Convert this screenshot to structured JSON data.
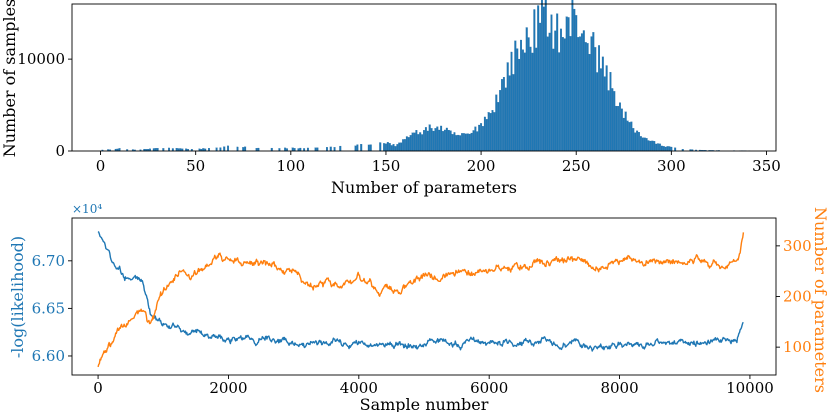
{
  "chart_data": [
    {
      "type": "bar",
      "title": "",
      "xlabel": "Number of parameters",
      "ylabel": "Number of samples",
      "xlim": [
        -15,
        355
      ],
      "ylim": [
        0,
        16000
      ],
      "xticks": [
        0,
        50,
        100,
        150,
        200,
        250,
        300,
        350
      ],
      "yticks": [
        0,
        10000
      ],
      "bar_color": "#1f77b4",
      "profile": [
        [
          0,
          100
        ],
        [
          10,
          250
        ],
        [
          20,
          120
        ],
        [
          30,
          320
        ],
        [
          40,
          280
        ],
        [
          50,
          200
        ],
        [
          60,
          330
        ],
        [
          70,
          550
        ],
        [
          80,
          380
        ],
        [
          90,
          300
        ],
        [
          100,
          320
        ],
        [
          110,
          280
        ],
        [
          120,
          420
        ],
        [
          130,
          560
        ],
        [
          140,
          700
        ],
        [
          150,
          900
        ],
        [
          155,
          600
        ],
        [
          160,
          1300
        ],
        [
          165,
          1900
        ],
        [
          170,
          2200
        ],
        [
          175,
          2600
        ],
        [
          180,
          2400
        ],
        [
          185,
          1800
        ],
        [
          190,
          1700
        ],
        [
          195,
          1900
        ],
        [
          200,
          3000
        ],
        [
          205,
          4200
        ],
        [
          210,
          6500
        ],
        [
          215,
          9300
        ],
        [
          220,
          11000
        ],
        [
          225,
          12500
        ],
        [
          230,
          13600
        ],
        [
          233,
          15300
        ],
        [
          236,
          14000
        ],
        [
          240,
          13100
        ],
        [
          244,
          12600
        ],
        [
          248,
          14500
        ],
        [
          252,
          13700
        ],
        [
          256,
          12400
        ],
        [
          260,
          10700
        ],
        [
          265,
          8900
        ],
        [
          270,
          6400
        ],
        [
          275,
          3900
        ],
        [
          280,
          2500
        ],
        [
          285,
          1600
        ],
        [
          290,
          1000
        ],
        [
          295,
          600
        ],
        [
          300,
          400
        ],
        [
          305,
          260
        ],
        [
          310,
          150
        ],
        [
          320,
          80
        ],
        [
          330,
          50
        ],
        [
          340,
          40
        ],
        [
          345,
          0
        ]
      ]
    },
    {
      "type": "line",
      "title": "",
      "xlabel": "Sample number",
      "xlim": [
        -400,
        10400
      ],
      "xticks": [
        0,
        2000,
        4000,
        6000,
        8000,
        10000
      ],
      "y_left": {
        "label": "-log(likelihood)",
        "multiplier": "×10⁴",
        "ylim": [
          6.58,
          6.745
        ],
        "ticks": [
          6.6,
          6.65,
          6.7
        ],
        "tick_labels": [
          "6.60",
          "6.65",
          "6.70"
        ],
        "color": "#1f77b4"
      },
      "y_right": {
        "label": "Number of parameters",
        "ylim": [
          45,
          355
        ],
        "ticks": [
          100,
          200,
          300
        ],
        "tick_labels": [
          "100",
          "200",
          "300"
        ],
        "color": "#ff7f0e"
      },
      "series": [
        {
          "name": "-log(likelihood)",
          "axis": "left",
          "color": "#1f77b4",
          "x": [
            0,
            100,
            200,
            300,
            400,
            500,
            600,
            700,
            800,
            1000,
            1200,
            1500,
            2000,
            2500,
            3000,
            3300,
            3600,
            4000,
            5000,
            6000,
            7000,
            8000,
            8500,
            9000,
            9500,
            9800,
            9900
          ],
          "y": [
            6.73,
            6.718,
            6.702,
            6.69,
            6.686,
            6.683,
            6.682,
            6.675,
            6.645,
            6.63,
            6.632,
            6.623,
            6.62,
            6.618,
            6.615,
            6.61,
            6.612,
            6.613,
            6.612,
            6.614,
            6.613,
            6.61,
            6.612,
            6.615,
            6.617,
            6.618,
            6.638
          ]
        },
        {
          "name": "Number of parameters",
          "axis": "right",
          "color": "#ff7f0e",
          "x": [
            0,
            100,
            300,
            500,
            700,
            800,
            1000,
            1200,
            1500,
            1800,
            2000,
            2500,
            3000,
            3300,
            3600,
            4000,
            4500,
            4700,
            5000,
            5500,
            6000,
            6500,
            7000,
            7500,
            7800,
            8000,
            8500,
            9000,
            9500,
            9800,
            9900
          ],
          "y": [
            60,
            90,
            120,
            150,
            170,
            150,
            205,
            240,
            255,
            265,
            262,
            265,
            250,
            220,
            228,
            232,
            218,
            222,
            240,
            250,
            248,
            268,
            270,
            265,
            258,
            265,
            272,
            268,
            272,
            275,
            330
          ]
        }
      ]
    }
  ]
}
